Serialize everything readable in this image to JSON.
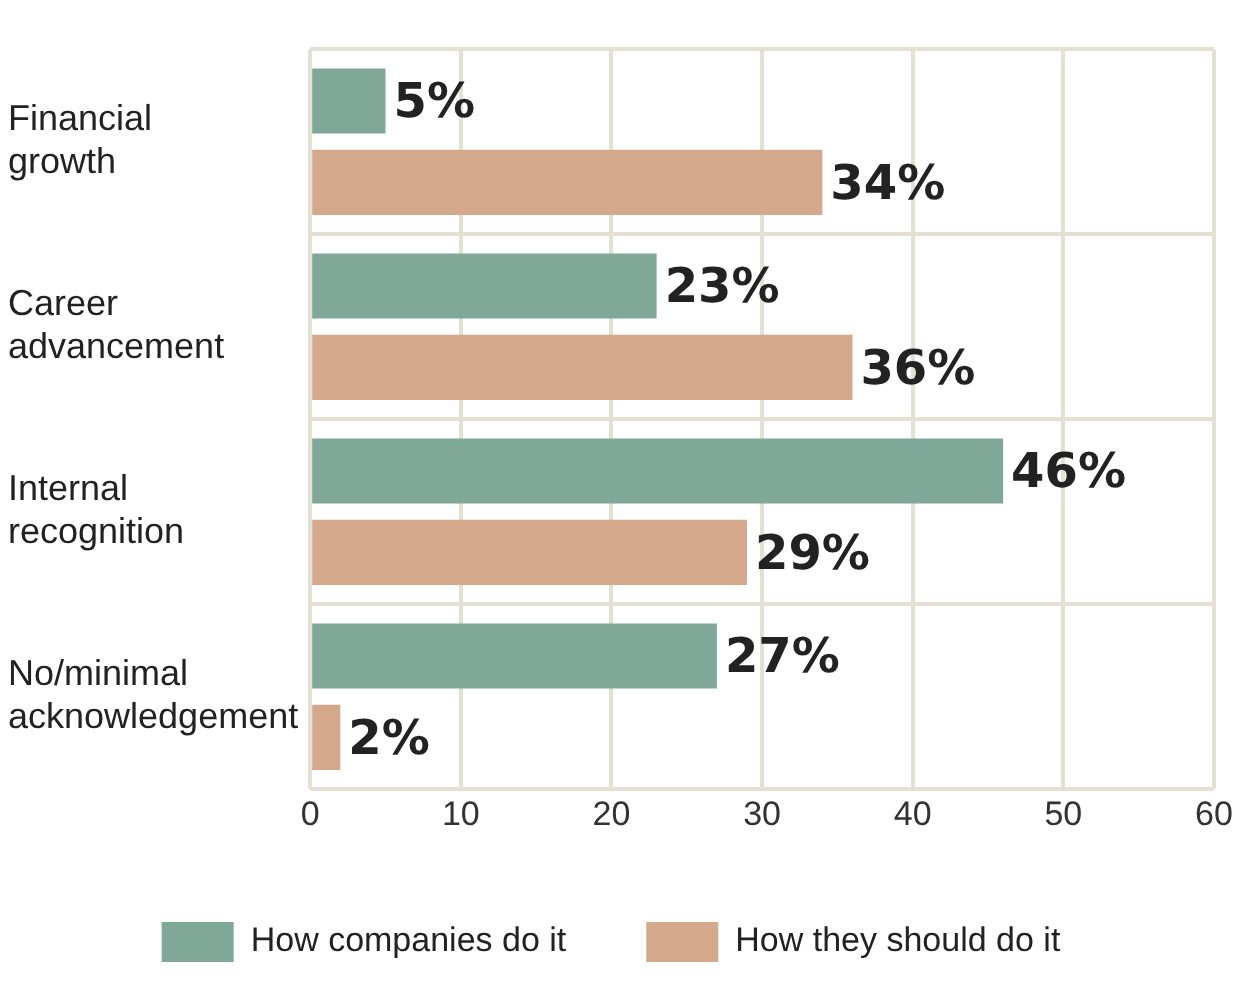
{
  "chart_data": {
    "type": "bar",
    "orientation": "horizontal",
    "categories": [
      "Financial growth",
      "Career advancement",
      "Internal recognition",
      "No/minimal acknowledgement"
    ],
    "series": [
      {
        "name": "How companies do it",
        "color": "#7fa898",
        "values": [
          5,
          23,
          46,
          27
        ],
        "value_labels": [
          "5%",
          "23%",
          "46%",
          "27%"
        ]
      },
      {
        "name": "How they should do it",
        "color": "#d4a88a",
        "values": [
          34,
          36,
          29,
          2
        ],
        "value_labels": [
          "34%",
          "36%",
          "29%",
          "2%"
        ]
      }
    ],
    "xlim": [
      0,
      60
    ],
    "xticks": [
      0,
      10,
      20,
      30,
      40,
      50,
      60
    ],
    "grid": true,
    "legend": "bottom"
  }
}
